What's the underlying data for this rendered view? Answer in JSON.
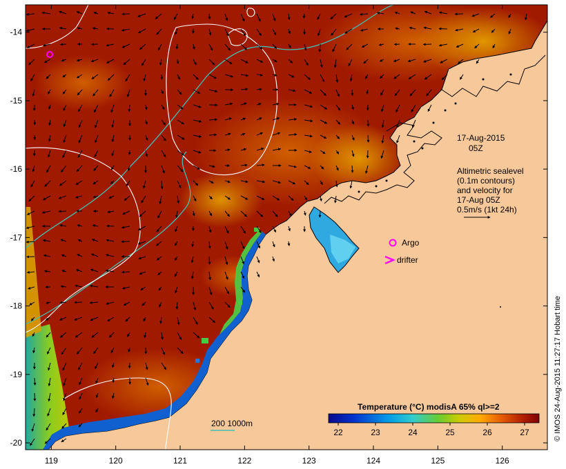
{
  "map": {
    "lon_range": [
      118.6,
      126.7
    ],
    "lat_range": [
      -20.1,
      -13.6
    ],
    "x_ticks": [
      "119",
      "120",
      "121",
      "122",
      "123",
      "124",
      "125",
      "126"
    ],
    "y_ticks": [
      "-14",
      "-15",
      "-16",
      "-17",
      "-18",
      "-19",
      "-20"
    ]
  },
  "annotations": {
    "timestamp_line1": "17-Aug-2015",
    "timestamp_line2": "05Z",
    "altimetry_line1": "Altimetric sealevel",
    "altimetry_line2": "(0.1m contours)",
    "altimetry_line3": "and velocity for",
    "altimetry_line4": "17-Aug 05Z",
    "altimetry_line5": "0.5m/s (1kt 24h)",
    "argo_label": "Argo",
    "drifter_label": "drifter",
    "bathy_label": "200  1000m",
    "credit": "© IMOS 24-Aug-2015 11:27:17 Hobart time"
  },
  "legend": {
    "title": "Temperature (°C) modisA 65% ql>=2",
    "ticks": [
      "22",
      "23",
      "24",
      "25",
      "26",
      "27"
    ],
    "colors": [
      "#0a0a8c",
      "#0033cc",
      "#0099e6",
      "#33cccc",
      "#66cc33",
      "#cccc00",
      "#ffaa00",
      "#e65c00",
      "#b32000",
      "#800000"
    ]
  },
  "colors": {
    "land": "#f7c99a",
    "sea_warm": "#a01a00",
    "sea_mid": "#d45a00",
    "coast": "#000000",
    "isobath": "#40c0b0",
    "contour": "#ffffff",
    "marker": "#ff00ff"
  }
}
